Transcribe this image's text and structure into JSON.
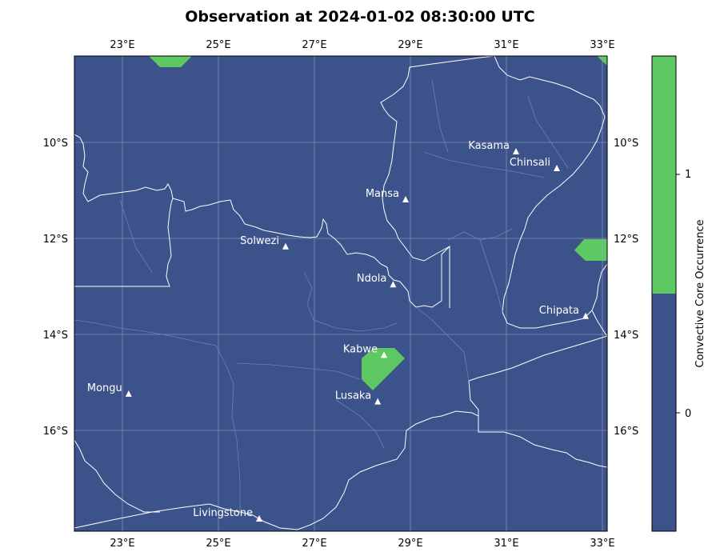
{
  "title": "Observation at 2024-01-02 08:30:00 UTC",
  "lon_ticks": [
    "23°E",
    "25°E",
    "27°E",
    "29°E",
    "31°E",
    "33°E"
  ],
  "lat_ticks": [
    "10°S",
    "12°S",
    "14°S",
    "16°S"
  ],
  "lon_tick_values": [
    23,
    25,
    27,
    29,
    31,
    33
  ],
  "lat_tick_values": [
    -10,
    -12,
    -14,
    -16
  ],
  "extent": {
    "lon_min": 22,
    "lon_max": 33.1,
    "lat_min": -18.1,
    "lat_max": -8.2
  },
  "cities": [
    {
      "name": "Kasama",
      "lon": 31.2,
      "lat": -10.2
    },
    {
      "name": "Chinsali",
      "lon": 32.05,
      "lat": -10.55
    },
    {
      "name": "Mansa",
      "lon": 28.9,
      "lat": -11.2
    },
    {
      "name": "Solwezi",
      "lon": 26.4,
      "lat": -12.18
    },
    {
      "name": "Ndola",
      "lon": 28.64,
      "lat": -12.97
    },
    {
      "name": "Chipata",
      "lon": 32.65,
      "lat": -13.63
    },
    {
      "name": "Kabwe",
      "lon": 28.45,
      "lat": -14.44
    },
    {
      "name": "Mongu",
      "lon": 23.13,
      "lat": -15.25
    },
    {
      "name": "Lusaka",
      "lon": 28.32,
      "lat": -15.41
    },
    {
      "name": "Livingstone",
      "lon": 25.85,
      "lat": -17.85
    }
  ],
  "colorbar": {
    "label": "Convective Core Occurrence",
    "ticks": [
      "0",
      "1"
    ],
    "colors": {
      "zero": "#3b528b",
      "one": "#5ec962"
    }
  },
  "colors": {
    "background": "#3b528b",
    "core": "#5ec962",
    "lines": "#ffffff",
    "grid": "#9aa6c4"
  }
}
